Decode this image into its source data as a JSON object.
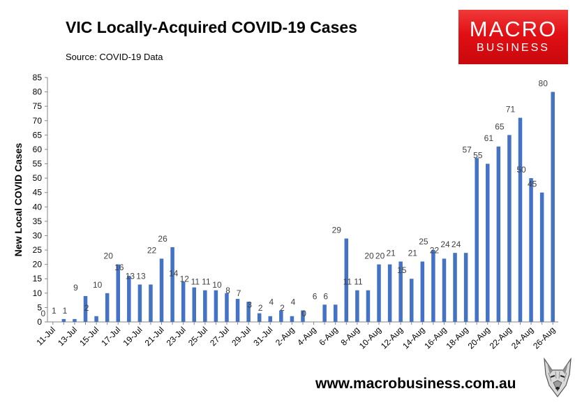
{
  "header": {
    "title": "VIC Locally-Acquired COVID-19 Cases",
    "source": "Source: COVID-19 Data"
  },
  "logo": {
    "line1": "MACRO",
    "line2": "BUSINESS",
    "color": "#e10f14"
  },
  "footer": {
    "url": "www.macrobusiness.com.au",
    "mascot_icon": "wolf-head-icon"
  },
  "chart_data": {
    "type": "bar",
    "title": "VIC Locally-Acquired COVID-19 Cases",
    "ylabel": "New Local COVID Cases",
    "xlabel": "",
    "ylim": [
      0,
      85
    ],
    "yticks": [
      0,
      5,
      10,
      15,
      20,
      25,
      30,
      35,
      40,
      45,
      50,
      55,
      60,
      65,
      70,
      75,
      80,
      85
    ],
    "bar_color": "#4472c4",
    "grid": false,
    "legend": "none",
    "categories": [
      "11-Jul",
      "12-Jul",
      "13-Jul",
      "14-Jul",
      "15-Jul",
      "16-Jul",
      "17-Jul",
      "18-Jul",
      "19-Jul",
      "20-Jul",
      "21-Jul",
      "22-Jul",
      "23-Jul",
      "24-Jul",
      "25-Jul",
      "26-Jul",
      "27-Jul",
      "28-Jul",
      "29-Jul",
      "30-Jul",
      "31-Jul",
      "1-Aug",
      "2-Aug",
      "3-Aug",
      "4-Aug",
      "5-Aug",
      "6-Aug",
      "7-Aug",
      "8-Aug",
      "9-Aug",
      "10-Aug",
      "11-Aug",
      "12-Aug",
      "13-Aug",
      "14-Aug",
      "15-Aug",
      "16-Aug",
      "17-Aug",
      "18-Aug",
      "19-Aug",
      "20-Aug",
      "21-Aug",
      "22-Aug",
      "23-Aug",
      "24-Aug",
      "25-Aug",
      "26-Aug"
    ],
    "x_tick_labels": [
      "11-Jul",
      "13-Jul",
      "15-Jul",
      "17-Jul",
      "19-Jul",
      "21-Jul",
      "23-Jul",
      "25-Jul",
      "27-Jul",
      "29-Jul",
      "31-Jul",
      "2-Aug",
      "4-Aug",
      "6-Aug",
      "8-Aug",
      "10-Aug",
      "12-Aug",
      "14-Aug",
      "16-Aug",
      "18-Aug",
      "20-Aug",
      "22-Aug",
      "24-Aug",
      "26-Aug"
    ],
    "values": [
      0,
      1,
      1,
      9,
      2,
      10,
      20,
      16,
      13,
      13,
      22,
      26,
      14,
      12,
      11,
      11,
      10,
      8,
      7,
      3,
      2,
      4,
      2,
      4,
      0,
      6,
      6,
      29,
      11,
      11,
      20,
      20,
      21,
      15,
      21,
      25,
      22,
      24,
      24,
      57,
      55,
      61,
      65,
      71,
      50,
      45,
      80
    ]
  }
}
